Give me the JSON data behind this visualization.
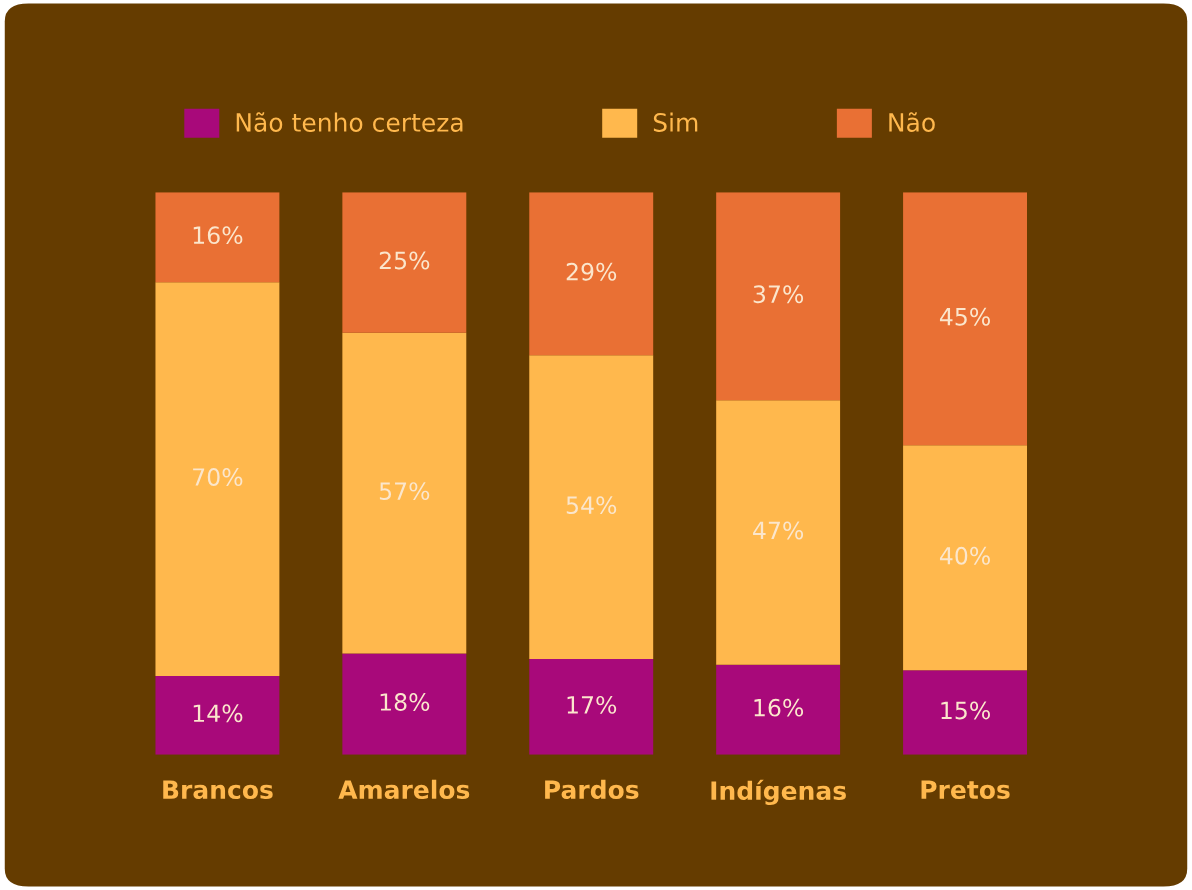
{
  "chart_data": {
    "type": "bar",
    "stacked": true,
    "legend": "top",
    "categories": [
      "Brancos",
      "Amarelos",
      "Pardos",
      "Indígenas",
      "Pretos"
    ],
    "series": [
      {
        "name": "Não tenho certeza",
        "color": "#a8097a",
        "values": [
          14,
          18,
          17,
          16,
          15
        ],
        "value_labels": [
          "14%",
          "18%",
          "17%",
          "16%",
          "15%"
        ]
      },
      {
        "name": "Sim",
        "color": "#ffb84d",
        "values": [
          70,
          57,
          54,
          47,
          40
        ],
        "value_labels": [
          "70%",
          "57%",
          "54%",
          "47%",
          "40%"
        ]
      },
      {
        "name": "Não",
        "color": "#e97034",
        "values": [
          16,
          25,
          29,
          37,
          45
        ],
        "value_labels": [
          "16%",
          "25%",
          "29%",
          "37%",
          "45%"
        ]
      }
    ]
  }
}
